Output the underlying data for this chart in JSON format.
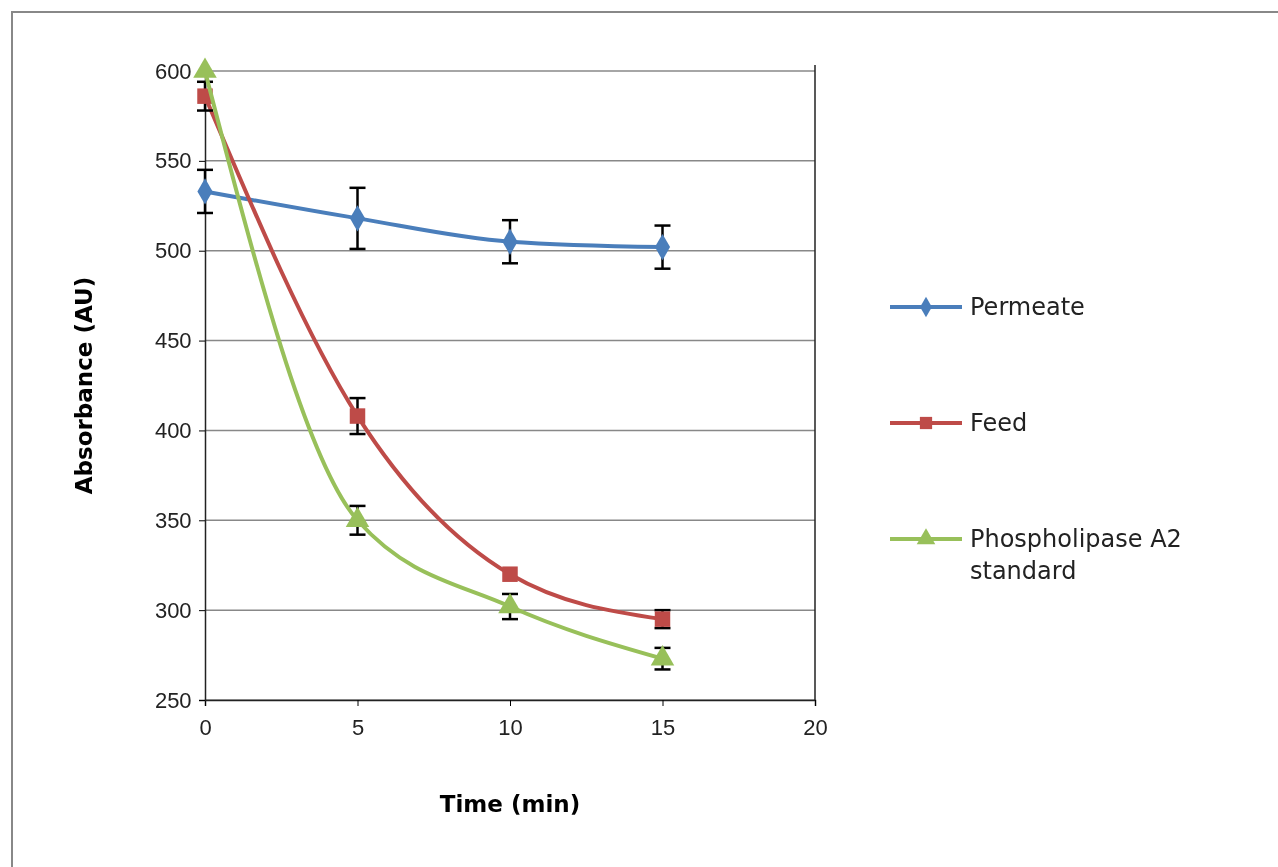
{
  "chart_data": {
    "type": "line",
    "xlabel": "Time (min)",
    "ylabel": "Absorbance  (AU)",
    "x": [
      0,
      5,
      10,
      15
    ],
    "xlim": [
      0,
      20
    ],
    "xticks": [
      0,
      5,
      10,
      15,
      20
    ],
    "ylim": [
      250,
      600
    ],
    "yticks": [
      250,
      300,
      350,
      400,
      450,
      500,
      550,
      600
    ],
    "grid": "y",
    "legend": "right",
    "line_style": "solid",
    "series": [
      {
        "name": "Permeate",
        "color": "#4a7ebb",
        "marker": "diamond",
        "values": [
          533,
          518,
          505,
          502
        ],
        "errors": [
          12,
          17,
          12,
          12
        ]
      },
      {
        "name": "Feed",
        "color": "#be4b48",
        "marker": "square",
        "values": [
          586,
          408,
          320,
          295
        ],
        "errors": [
          8,
          10,
          null,
          5
        ]
      },
      {
        "name": "Phospholipase A2 standard",
        "color": "#98c05a",
        "marker": "triangle",
        "values": [
          600,
          350,
          302,
          273
        ],
        "errors": [
          null,
          8,
          7,
          6
        ]
      }
    ]
  }
}
